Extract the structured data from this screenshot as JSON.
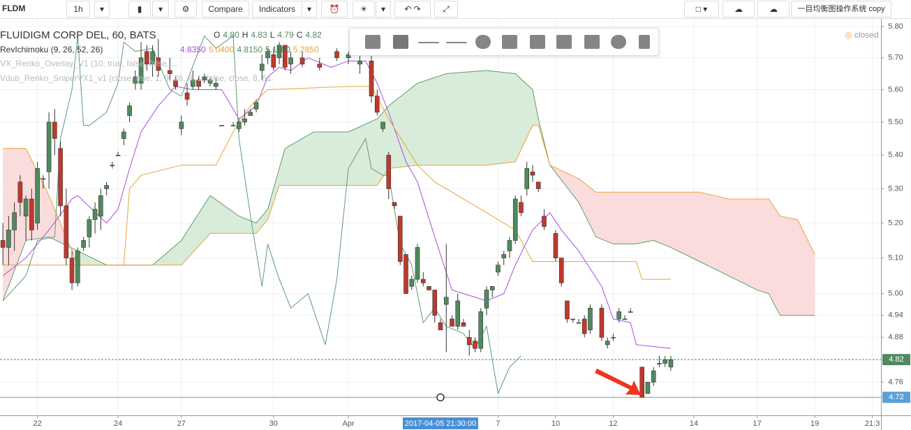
{
  "toolbar": {
    "symbol": "FLDM",
    "interval": "1h",
    "compare": "Compare",
    "indicators": "Indicators",
    "layout_name": "一目均衡图操作系统 copy"
  },
  "legend": {
    "title": "FLUIDIGM CORP DEL, 60, BATS",
    "ohlc": [
      "O",
      "4.80",
      "H",
      "4.83",
      "L",
      "4.79",
      "C",
      "4.82"
    ],
    "indicator": "RevIchimoku (9, 26, 52, 26)",
    "indicator_values": [
      {
        "text": "4.8350",
        "color": "#a64ee0"
      },
      {
        "text": "5.0400",
        "color": "#e8a33c"
      },
      {
        "text": "4.8150",
        "color": "#4f8a5f"
      },
      {
        "text": "5.1100",
        "color": "#3f6f4a"
      },
      {
        "text": "5.2850",
        "color": "#e8a33c"
      }
    ],
    "hidden": [
      "VX_Renko_Overlay_V1 (10, true, false, false, ...",
      "Vdub_Renko_SniperVX1_v1 (close, true, 1, 9, 26, 8, 1, false, close, 8, 51"
    ],
    "status": "closed"
  },
  "chart_data": {
    "type": "candlestick",
    "log": true,
    "grid": true,
    "up_color": "#4f8a5f",
    "down_color": "#c0392b",
    "wick_color": "#333333",
    "xlim": [
      -0.5,
      152.5
    ],
    "ylim": [
      4.673,
      5.827
    ],
    "xticks": [
      {
        "value": 6,
        "label": "22"
      },
      {
        "value": 20,
        "label": "24"
      },
      {
        "value": 31,
        "label": "27"
      },
      {
        "value": 47,
        "label": "30"
      },
      {
        "value": 60,
        "label": "Apr"
      },
      {
        "value": 86,
        "label": "7"
      },
      {
        "value": 96,
        "label": "10"
      },
      {
        "value": 106,
        "label": "12"
      },
      {
        "value": 120,
        "label": "14"
      },
      {
        "value": 131,
        "label": "17"
      },
      {
        "value": 141,
        "label": "19"
      },
      {
        "value": 151,
        "label": "21:3"
      }
    ],
    "yticks": [
      {
        "value": 5.8,
        "label": "5.80"
      },
      {
        "value": 5.7,
        "label": "5.70"
      },
      {
        "value": 5.6,
        "label": "5.60"
      },
      {
        "value": 5.5,
        "label": "5.50"
      },
      {
        "value": 5.4,
        "label": "5.40"
      },
      {
        "value": 5.3,
        "label": "5.30"
      },
      {
        "value": 5.2,
        "label": "5.20"
      },
      {
        "value": 5.1,
        "label": "5.10"
      },
      {
        "value": 5.0,
        "label": "5.00"
      },
      4.94,
      4.88,
      4.76
    ],
    "crosshair": {
      "x": 76,
      "label": "2017-04-05 21:30:00"
    },
    "price_lines": [
      {
        "value": 4.82,
        "color": "#4f8a5f"
      },
      {
        "value": 4.72,
        "color": "#5aa0d6"
      }
    ],
    "x": [
      0,
      1,
      2,
      3,
      4,
      5,
      6,
      7,
      8,
      9,
      10,
      11,
      12,
      13,
      14,
      15,
      16,
      17,
      18,
      19,
      20,
      21,
      22,
      23,
      24,
      25,
      26,
      27,
      29,
      30,
      31,
      32,
      33,
      34,
      35,
      36,
      37,
      38,
      40,
      41,
      42,
      43,
      44,
      45,
      46,
      47,
      48,
      49,
      50,
      52,
      55,
      58,
      60,
      62,
      64,
      65,
      66,
      67,
      68,
      69,
      70,
      71,
      72,
      73,
      74,
      75,
      76,
      77,
      78,
      79,
      80,
      81,
      82,
      83,
      84,
      85,
      86,
      87,
      88,
      89,
      90,
      91,
      92,
      93,
      94,
      96,
      97,
      98,
      99,
      100,
      101,
      102,
      104,
      105,
      106,
      107,
      108,
      109,
      111,
      112,
      113,
      114,
      115,
      116
    ],
    "open": [
      5.15,
      5.13,
      5.18,
      5.32,
      5.22,
      5.27,
      5.2,
      5.33,
      5.35,
      5.5,
      5.42,
      5.25,
      5.1,
      5.03,
      5.13,
      5.16,
      5.21,
      5.22,
      5.3,
      5.37,
      5.4,
      5.45,
      5.52,
      5.62,
      5.62,
      5.72,
      5.68,
      5.7,
      5.66,
      5.63,
      5.48,
      5.59,
      5.61,
      5.63,
      5.63,
      5.62,
      5.61,
      5.49,
      5.49,
      5.48,
      5.5,
      5.52,
      5.54,
      5.66,
      5.7,
      5.71,
      5.7,
      5.74,
      5.68,
      5.7,
      5.68,
      5.72,
      5.7,
      5.68,
      5.69,
      5.58,
      5.48,
      5.4,
      5.26,
      5.22,
      5.11,
      5.02,
      5.04,
      5.04,
      5.02,
      5.01,
      4.92,
      4.97,
      4.93,
      4.91,
      4.92,
      4.88,
      4.87,
      4.85,
      4.96,
      5.01,
      5.06,
      5.1,
      5.12,
      5.15,
      5.26,
      5.3,
      5.35,
      5.32,
      5.22,
      5.17,
      5.1,
      4.98,
      4.93,
      4.92,
      4.93,
      4.9,
      4.96,
      4.86,
      4.88,
      4.93,
      4.93,
      4.95,
      4.8,
      4.73,
      4.76,
      4.81,
      4.81,
      4.8
    ],
    "high": [
      5.2,
      5.22,
      5.26,
      5.34,
      5.28,
      5.3,
      5.38,
      5.34,
      5.53,
      5.54,
      5.44,
      5.3,
      5.12,
      5.13,
      5.16,
      5.22,
      5.26,
      5.3,
      5.32,
      5.38,
      5.41,
      5.48,
      5.56,
      5.66,
      5.75,
      5.74,
      5.74,
      5.76,
      5.7,
      5.64,
      5.52,
      5.62,
      5.66,
      5.64,
      5.65,
      5.64,
      5.64,
      5.49,
      5.5,
      5.51,
      5.54,
      5.54,
      5.57,
      5.71,
      5.73,
      5.73,
      5.75,
      5.74,
      5.72,
      5.72,
      5.7,
      5.73,
      5.72,
      5.71,
      5.71,
      5.6,
      5.5,
      5.41,
      5.26,
      5.22,
      5.11,
      5.05,
      5.14,
      5.06,
      5.02,
      5.01,
      4.93,
      5.14,
      4.94,
      5.0,
      4.93,
      4.9,
      4.88,
      4.96,
      5.02,
      5.02,
      5.09,
      5.12,
      5.16,
      5.28,
      5.28,
      5.38,
      5.37,
      5.32,
      5.24,
      5.18,
      5.1,
      4.98,
      4.93,
      4.93,
      4.94,
      4.97,
      4.97,
      4.88,
      4.89,
      4.96,
      4.94,
      4.96,
      4.8,
      4.76,
      4.8,
      4.83,
      4.83,
      4.83
    ],
    "low": [
      5.08,
      5.08,
      5.12,
      5.22,
      5.15,
      5.15,
      5.18,
      5.3,
      5.3,
      5.4,
      5.22,
      5.08,
      5.01,
      5.02,
      5.12,
      5.13,
      5.17,
      5.18,
      5.28,
      5.36,
      5.4,
      5.43,
      5.5,
      5.6,
      5.6,
      5.66,
      5.64,
      5.64,
      5.63,
      5.6,
      5.46,
      5.55,
      5.6,
      5.6,
      5.62,
      5.61,
      5.6,
      5.49,
      5.49,
      5.47,
      5.49,
      5.52,
      5.53,
      5.63,
      5.68,
      5.66,
      5.68,
      5.66,
      5.65,
      5.67,
      5.66,
      5.69,
      5.68,
      5.65,
      5.56,
      5.52,
      5.47,
      5.27,
      5.24,
      5.08,
      5.0,
      5.01,
      5.03,
      5.02,
      5.01,
      4.92,
      4.9,
      4.84,
      4.91,
      4.9,
      4.91,
      4.83,
      4.84,
      4.84,
      4.94,
      4.99,
      5.05,
      5.08,
      5.1,
      5.14,
      5.22,
      5.28,
      5.32,
      5.29,
      5.18,
      5.09,
      5.02,
      4.92,
      4.92,
      4.92,
      4.88,
      4.89,
      4.87,
      4.85,
      4.87,
      4.92,
      4.93,
      4.95,
      4.72,
      4.73,
      4.75,
      4.8,
      4.8,
      4.79
    ],
    "close": [
      5.13,
      5.18,
      5.23,
      5.26,
      5.27,
      5.18,
      5.36,
      5.33,
      5.5,
      5.45,
      5.25,
      5.1,
      5.03,
      5.12,
      5.15,
      5.21,
      5.24,
      5.28,
      5.31,
      5.37,
      5.4,
      5.47,
      5.55,
      5.64,
      5.7,
      5.68,
      5.72,
      5.66,
      5.65,
      5.61,
      5.5,
      5.57,
      5.63,
      5.61,
      5.64,
      5.63,
      5.62,
      5.49,
      5.49,
      5.5,
      5.51,
      5.53,
      5.56,
      5.68,
      5.72,
      5.67,
      5.74,
      5.67,
      5.7,
      5.68,
      5.67,
      5.7,
      5.71,
      5.69,
      5.58,
      5.53,
      5.5,
      5.3,
      5.25,
      5.09,
      5.0,
      5.04,
      5.13,
      5.03,
      5.01,
      4.94,
      4.9,
      4.99,
      4.91,
      4.98,
      4.91,
      4.86,
      4.85,
      4.95,
      5.01,
      5.02,
      5.08,
      5.11,
      5.15,
      5.27,
      5.23,
      5.36,
      5.34,
      5.3,
      5.19,
      5.1,
      5.03,
      4.93,
      4.93,
      4.92,
      4.89,
      4.96,
      4.88,
      4.87,
      4.88,
      4.95,
      4.93,
      4.95,
      4.72,
      4.76,
      4.79,
      4.81,
      4.82,
      4.82
    ],
    "cloud": {
      "up_color": "#d9ecd9",
      "down_color": "#fbdcdc",
      "span_a": {
        "color": "#5f9a72",
        "x": [
          0,
          4,
          8,
          13,
          18,
          21,
          26,
          31,
          36,
          41,
          44,
          46,
          48,
          49,
          54,
          60,
          65,
          67,
          72,
          77,
          84,
          89,
          92,
          93,
          95,
          100,
          103,
          106,
          110,
          113,
          116,
          121,
          126,
          131,
          133,
          135,
          138,
          141
        ],
        "values": [
          4.98,
          5.15,
          5.16,
          5.12,
          5.08,
          5.08,
          5.08,
          5.15,
          5.28,
          5.22,
          5.2,
          5.24,
          5.36,
          5.42,
          5.47,
          5.47,
          5.51,
          5.55,
          5.62,
          5.65,
          5.66,
          5.65,
          5.6,
          5.51,
          5.37,
          5.26,
          5.16,
          5.14,
          5.14,
          5.15,
          5.13,
          5.09,
          5.05,
          5.01,
          5.0,
          4.94,
          4.94,
          4.94
        ]
      },
      "span_b": {
        "color": "#e8a33c",
        "x": [
          0,
          4,
          8,
          13,
          18,
          21,
          26,
          31,
          36,
          41,
          44,
          46,
          48,
          49,
          54,
          60,
          65,
          67,
          72,
          77,
          84,
          89,
          92,
          93,
          95,
          100,
          103,
          106,
          110,
          113,
          116,
          121,
          126,
          131,
          133,
          135,
          138,
          141
        ],
        "values": [
          5.42,
          5.42,
          5.28,
          5.08,
          5.08,
          5.08,
          5.08,
          5.08,
          5.17,
          5.17,
          5.17,
          5.21,
          5.31,
          5.31,
          5.31,
          5.31,
          5.31,
          5.36,
          5.37,
          5.37,
          5.37,
          5.38,
          5.49,
          5.49,
          5.37,
          5.33,
          5.29,
          5.29,
          5.29,
          5.29,
          5.29,
          5.29,
          5.27,
          5.27,
          5.27,
          5.22,
          5.21,
          5.11
        ]
      }
    },
    "lines": [
      {
        "color": "#a64ee0",
        "x": [
          0,
          4,
          8,
          12,
          13,
          18,
          20,
          22,
          24,
          27,
          30,
          33,
          38,
          41,
          44,
          46,
          48,
          50,
          53,
          57,
          60,
          63,
          65,
          67,
          70,
          72,
          75,
          78,
          82,
          84,
          87,
          89,
          92,
          95,
          97,
          100,
          104,
          106,
          109,
          110,
          116
        ],
        "values": [
          5.05,
          5.1,
          5.18,
          5.27,
          5.28,
          5.2,
          5.24,
          5.36,
          5.47,
          5.55,
          5.61,
          5.6,
          5.6,
          5.51,
          5.55,
          5.64,
          5.67,
          5.66,
          5.7,
          5.67,
          5.69,
          5.69,
          5.62,
          5.53,
          5.38,
          5.32,
          5.16,
          5.01,
          4.99,
          4.98,
          5.0,
          5.08,
          5.18,
          5.23,
          5.18,
          5.12,
          5.02,
          4.93,
          4.92,
          4.86,
          4.85
        ]
      },
      {
        "color": "#e8a33c",
        "x": [
          0,
          12,
          17,
          21,
          22,
          24,
          31,
          37,
          40,
          43,
          46,
          60,
          64,
          67,
          72,
          75,
          78,
          82,
          89,
          92,
          110,
          111,
          116
        ],
        "values": [
          5.08,
          5.08,
          5.08,
          5.08,
          5.3,
          5.34,
          5.37,
          5.37,
          5.47,
          5.55,
          5.6,
          5.61,
          5.61,
          5.51,
          5.37,
          5.32,
          5.29,
          5.25,
          5.18,
          5.09,
          5.09,
          5.04,
          5.04
        ]
      },
      {
        "color": "#5f9a72",
        "x": [
          0,
          4,
          6,
          9,
          10,
          12,
          13,
          14,
          15,
          18,
          20,
          21,
          23,
          26,
          29,
          31,
          35,
          37,
          40,
          41,
          43,
          45,
          46,
          48,
          50,
          53,
          56,
          58,
          60,
          63,
          64,
          66,
          67,
          69,
          71,
          72,
          73,
          75,
          77,
          80,
          82,
          84,
          86,
          88,
          90
        ],
        "values": [
          4.98,
          5.05,
          5.15,
          5.16,
          5.45,
          5.6,
          5.77,
          5.49,
          5.49,
          5.53,
          5.62,
          5.75,
          5.72,
          5.73,
          5.6,
          5.58,
          5.77,
          5.73,
          5.77,
          5.45,
          5.22,
          5.02,
          5.14,
          5.04,
          4.96,
          5.0,
          4.86,
          5.04,
          5.36,
          5.45,
          5.36,
          5.34,
          5.34,
          5.14,
          5.08,
          5.0,
          4.92,
          4.96,
          4.91,
          4.89,
          4.85,
          4.91,
          4.73,
          4.8,
          4.83
        ]
      }
    ]
  }
}
